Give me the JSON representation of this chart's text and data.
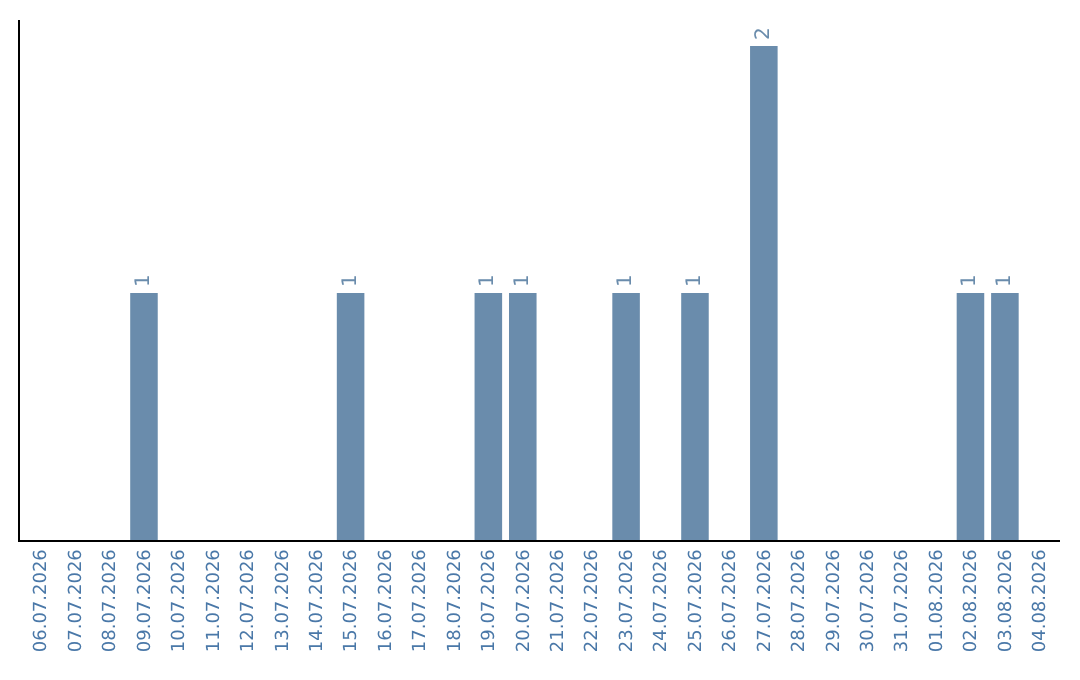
{
  "chart_data": {
    "type": "bar",
    "categories": [
      "06.07.2026",
      "07.07.2026",
      "08.07.2026",
      "09.07.2026",
      "10.07.2026",
      "11.07.2026",
      "12.07.2026",
      "13.07.2026",
      "14.07.2026",
      "15.07.2026",
      "16.07.2026",
      "17.07.2026",
      "18.07.2026",
      "19.07.2026",
      "20.07.2026",
      "21.07.2026",
      "22.07.2026",
      "23.07.2026",
      "24.07.2026",
      "25.07.2026",
      "26.07.2026",
      "27.07.2026",
      "28.07.2026",
      "29.07.2026",
      "30.07.2026",
      "31.07.2026",
      "01.08.2026",
      "02.08.2026",
      "03.08.2026",
      "04.08.2026"
    ],
    "values": [
      0,
      0,
      0,
      1,
      0,
      0,
      0,
      0,
      0,
      1,
      0,
      0,
      0,
      1,
      1,
      0,
      0,
      1,
      0,
      1,
      0,
      2,
      0,
      0,
      0,
      0,
      0,
      1,
      1,
      0
    ],
    "value_labels": [
      null,
      null,
      null,
      "1",
      null,
      null,
      null,
      null,
      null,
      "1",
      null,
      null,
      null,
      "1",
      "1",
      null,
      null,
      "1",
      null,
      "1",
      null,
      "2",
      null,
      null,
      null,
      null,
      null,
      "1",
      "1",
      null
    ],
    "color": "#6a8cac",
    "tick_labels": "x"
  }
}
